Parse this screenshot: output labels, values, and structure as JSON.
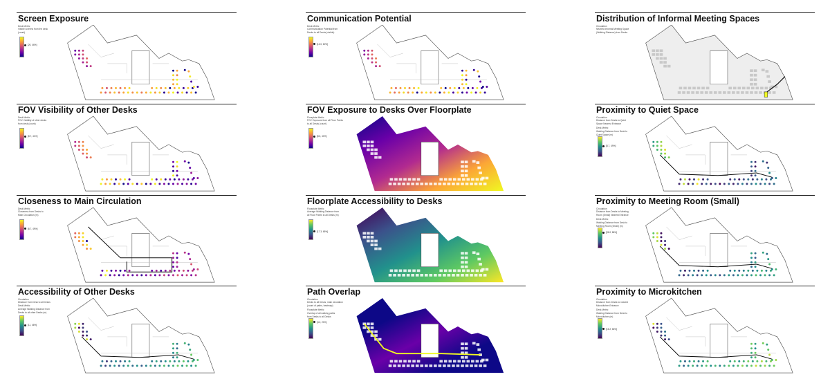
{
  "panels": [
    {
      "title": "Screen Exposure",
      "legend": {
        "lines": [
          "Desk Metric",
          "Visible screens from the desk",
          "(count)"
        ],
        "marker": "[20, 46%]",
        "ramp": "plasma",
        "marker_pos": 0.55
      },
      "map": {
        "style": "dots",
        "ramp": "plasma",
        "circulation": false
      }
    },
    {
      "title": "Communication Potential",
      "legend": {
        "lines": [
          "Desk Metric",
          "Communication Potential from",
          "Desks to all Desks (visible)"
        ],
        "marker": "[13.0, 60%]",
        "ramp": "plasma",
        "marker_pos": 0.6
      },
      "map": {
        "style": "dots",
        "ramp": "plasma",
        "circulation": false
      }
    },
    {
      "title": "Distribution of Informal Meeting Spaces",
      "legend": {
        "lines": [
          "Circulation",
          "Nearest Informal Meeting Space",
          "(Walking Distance) from Desks"
        ],
        "marker": "",
        "ramp": "none",
        "marker_pos": 0
      },
      "map": {
        "style": "gray",
        "ramp": "plasma",
        "circulation": false
      }
    },
    {
      "title": "FOV Visibility of Other Desks",
      "legend": {
        "lines": [
          "Desk Metric",
          "FOV Visibility of other desks",
          "from desk (count)"
        ],
        "marker": "[8.7, 41%]",
        "ramp": "plasma",
        "marker_pos": 0.55
      },
      "map": {
        "style": "dots",
        "ramp": "plasma",
        "circulation": false
      }
    },
    {
      "title": "FOV Exposure to Desks Over Floorplate",
      "legend": {
        "lines": [
          "Floorplate Metric",
          "FOV Exposure from all Floor Points",
          "to all Desks (count)"
        ],
        "marker": "[8.5, 40%]",
        "ramp": "plasma",
        "marker_pos": 0.55
      },
      "map": {
        "style": "heat",
        "ramp": "plasma",
        "circulation": false
      }
    },
    {
      "title": "Proximity to Quiet Space",
      "legend": {
        "lines": [
          "Circulation",
          "Distance from Desks to Quiet",
          "Space Nearest Entrance",
          "Desk Metric",
          "Walking Distance from Desk to",
          "Quiet Space (m)"
        ],
        "marker": "[8.7, 49%]",
        "ramp": "viridis",
        "marker_pos": 0.5
      },
      "map": {
        "style": "dots",
        "ramp": "viridis",
        "circulation": true
      }
    },
    {
      "title": "Closeness to Main Circulation",
      "legend": {
        "lines": [
          "Desk Metric",
          "Closeness from Desks to",
          "Main Circulation (m)"
        ],
        "marker": "[8.7, 49%]",
        "ramp": "plasma",
        "marker_pos": 0.5
      },
      "map": {
        "style": "dots",
        "ramp": "plasma",
        "circulation": true
      }
    },
    {
      "title": "Floorplate Accessibility to Desks",
      "legend": {
        "lines": [
          "Floorplate Metric",
          "Average Walking Distance from",
          "all Floor Points to all Desks (m)"
        ],
        "marker": "[17.3, 65%]",
        "ramp": "viridis",
        "marker_pos": 0.35
      },
      "map": {
        "style": "heat",
        "ramp": "viridis",
        "circulation": false
      }
    },
    {
      "title": "Proximity to Meeting Room (Small)",
      "legend": {
        "lines": [
          "Circulation",
          "Distance from Desks to Meeting",
          "Room (Small) Nearest Entrance",
          "Desk Metric",
          "Walking Distance from Desk to",
          "Meeting Room (Small) (m)"
        ],
        "marker": "[26.0, 86%]",
        "ramp": "viridis",
        "marker_pos": 0.75
      },
      "map": {
        "style": "dots",
        "ramp": "viridis",
        "circulation": true
      }
    },
    {
      "title": "Accessibility of Other Desks",
      "legend": {
        "lines": [
          "Circulation",
          "Distance from Desk to all Desks",
          "Desk Metric",
          "Average Walking Distance from",
          "Desks to all other Desks (m)"
        ],
        "marker": "[11, 46%]",
        "ramp": "viridis",
        "marker_pos": 0.5
      },
      "map": {
        "style": "dots",
        "ramp": "viridis",
        "circulation": true
      }
    },
    {
      "title": "Path Overlap",
      "legend": {
        "lines": [
          "Circulation",
          "Desks to all Desks, main circulation",
          "(count of paths, heatmap)",
          "Floorplate Metric",
          "Overlap of all walking paths",
          "from Desks to all Desks"
        ],
        "marker": "[4.0, 20%]",
        "ramp": "viridis",
        "marker_pos": 0.8
      },
      "map": {
        "style": "heat",
        "ramp": "plasma",
        "circulation": true
      }
    },
    {
      "title": "Proximity to Microkitchen",
      "legend": {
        "lines": [
          "Circulation",
          "Distance from Desks to nearest",
          "Microkitchen Entrance",
          "Desk Metric",
          "Walking Distance from Desk to",
          "Microkitchen (m)"
        ],
        "marker": "[15.2, 66%]",
        "ramp": "viridis",
        "marker_pos": 0.45
      },
      "map": {
        "style": "dots",
        "ramp": "viridis",
        "circulation": true
      }
    }
  ],
  "colors": {
    "rule": "#222222",
    "outline": "#555555",
    "plasma": [
      "#0d0887",
      "#6a00a8",
      "#b12a90",
      "#e16462",
      "#fca636",
      "#f0f921"
    ],
    "viridis": [
      "#440154",
      "#3b528b",
      "#21918c",
      "#5ec962",
      "#fde725"
    ]
  }
}
